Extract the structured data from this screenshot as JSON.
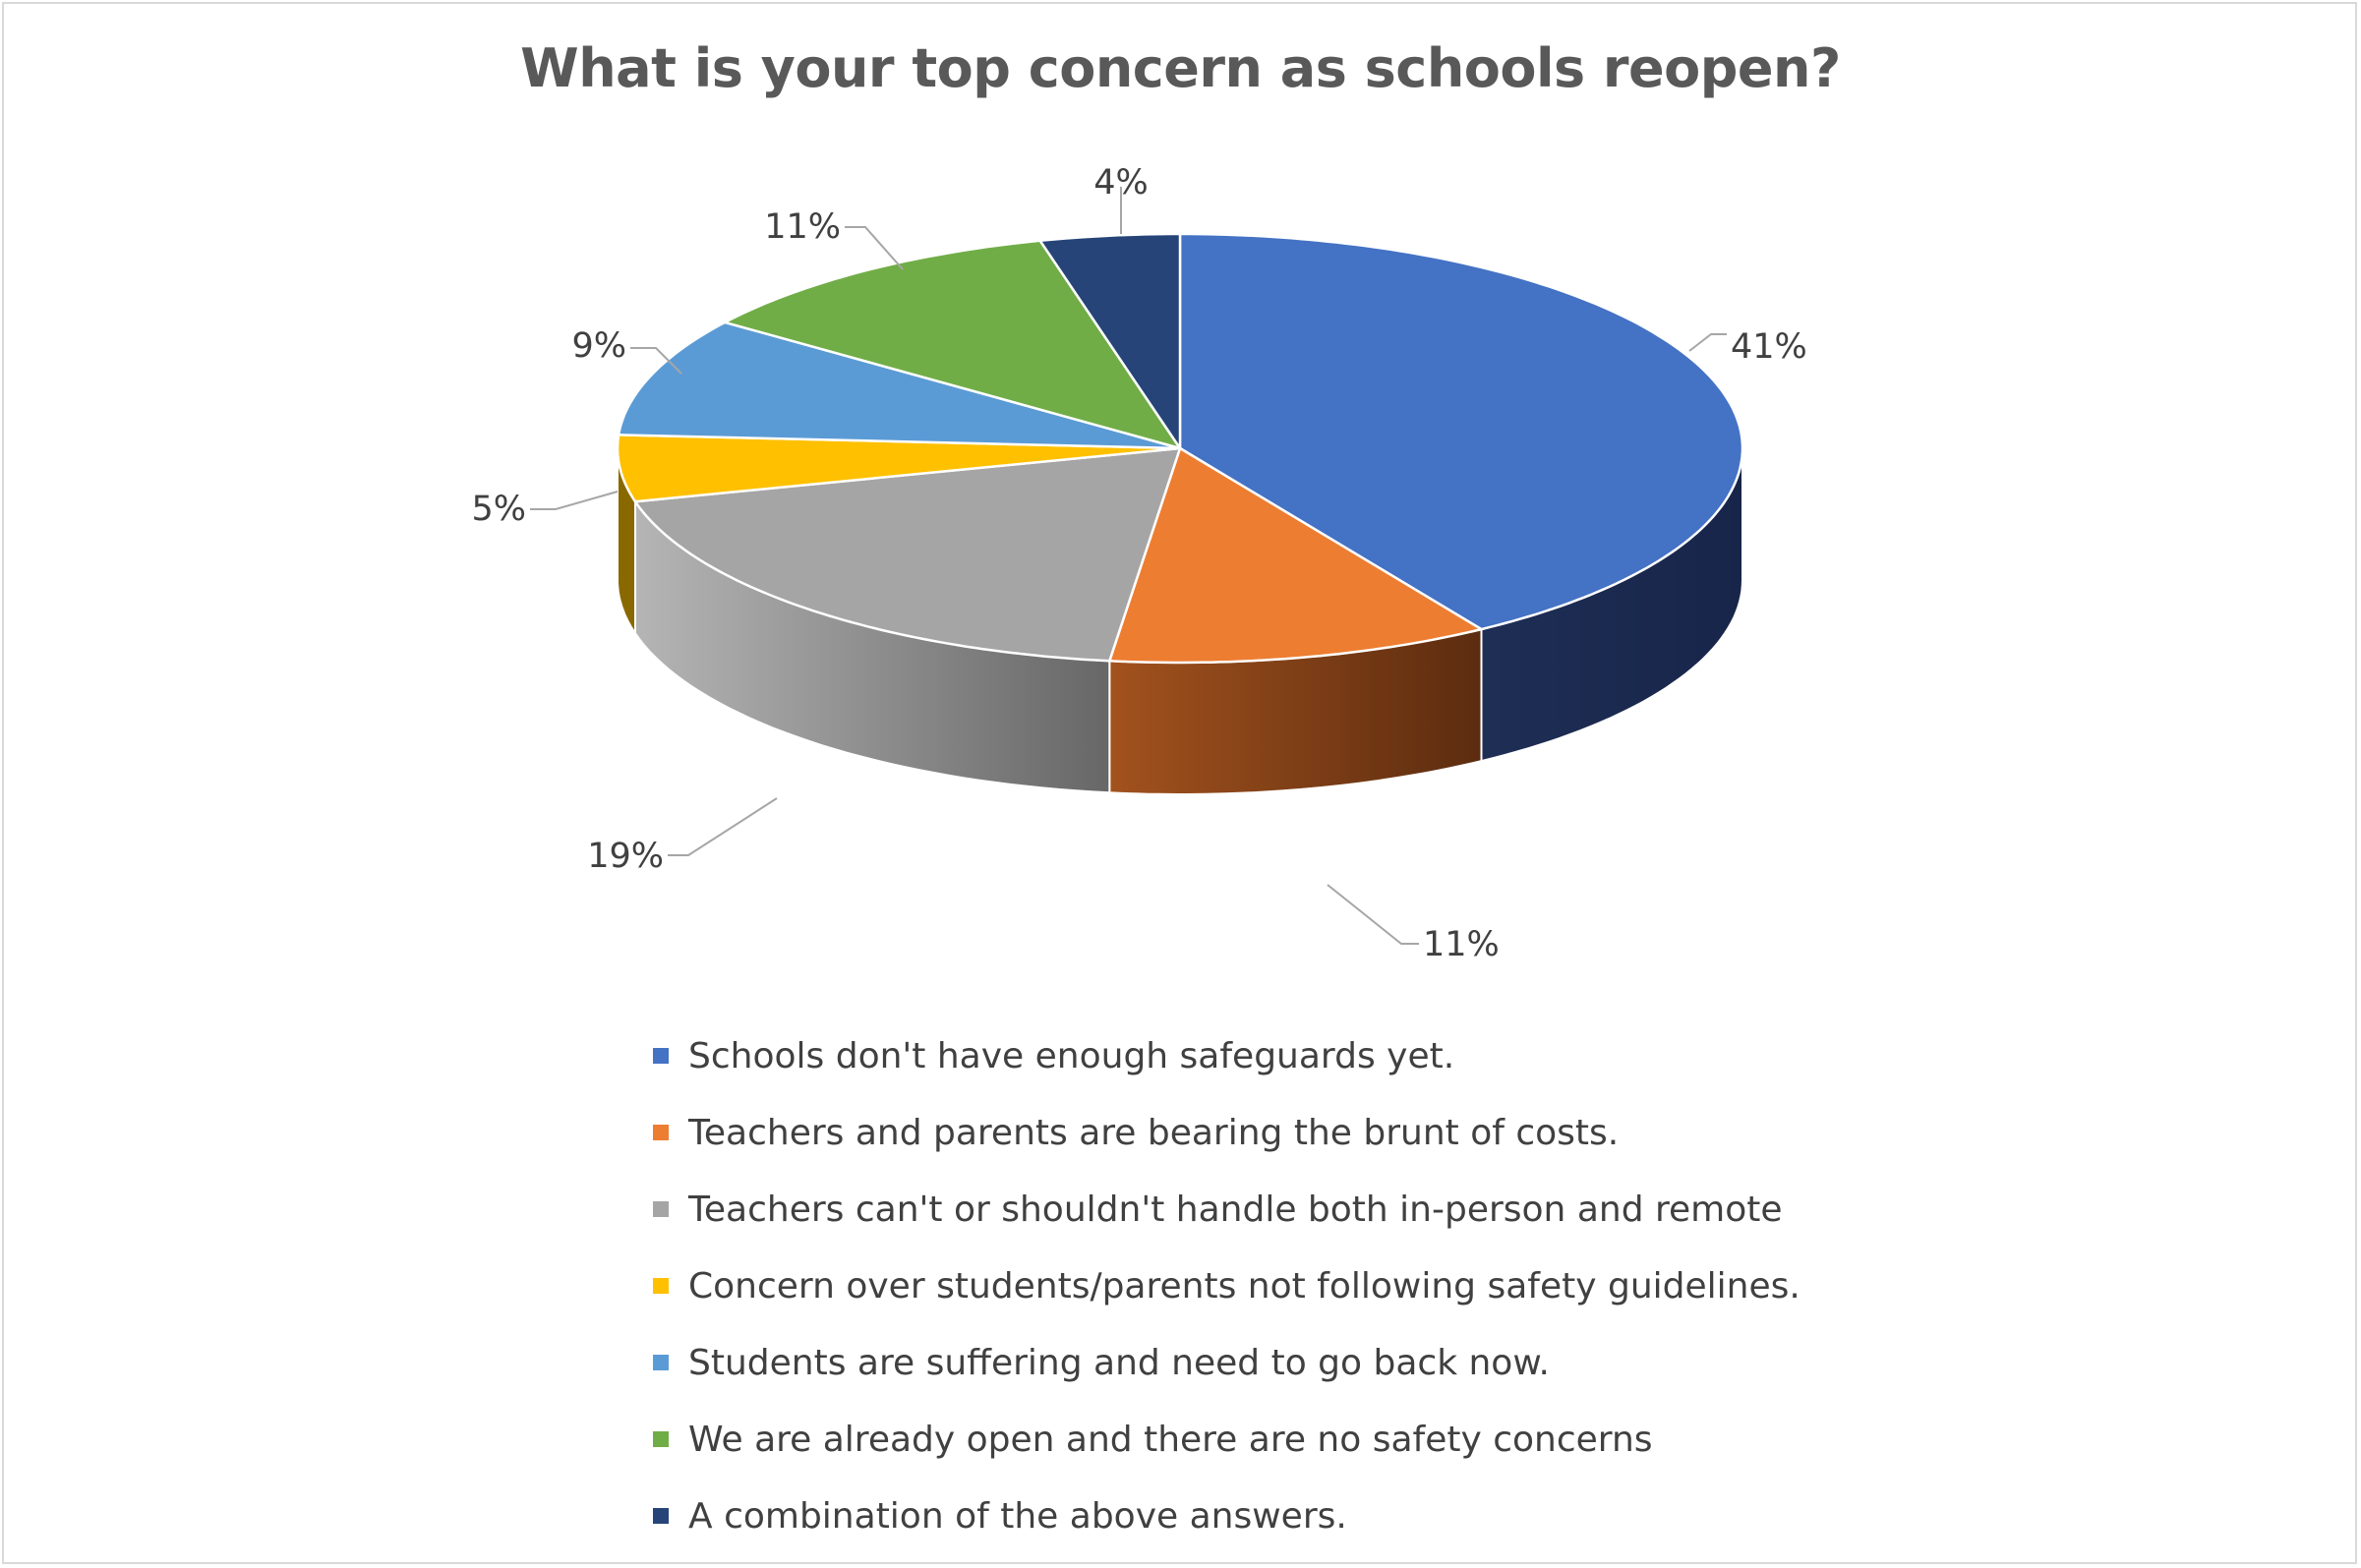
{
  "chart_data": {
    "type": "pie",
    "style": "3d-exploded-none",
    "title": "What is your top concern as schools reopen?",
    "slices": [
      {
        "label": "Schools don't have enough safeguards yet.",
        "value": 41,
        "display": "41%",
        "color": "#4472C4",
        "side_color": "#1C2B4E"
      },
      {
        "label": "Teachers and parents are bearing the brunt of costs.",
        "value": 11,
        "display": "11%",
        "color": "#ED7D31",
        "side_color": "#6B3412"
      },
      {
        "label": "Teachers can't or shouldn't handle both in-person and remote",
        "value": 19,
        "display": "19%",
        "color": "#A5A5A5",
        "side_color": "#6E6E6E"
      },
      {
        "label": "Concern over students/parents not following safety guidelines.",
        "value": 5,
        "display": "5%",
        "color": "#FFC000",
        "side_color": "#8A6800"
      },
      {
        "label": "Students are suffering and need to go back now.",
        "value": 9,
        "display": "9%",
        "color": "#5B9BD5",
        "side_color": "#2E5A83"
      },
      {
        "label": "We are already open and there are no safety concerns",
        "value": 11,
        "display": "11%",
        "color": "#70AD47",
        "side_color": "#3D6626"
      },
      {
        "label": "A combination of the above answers.",
        "value": 4,
        "display": "4%",
        "color": "#264478",
        "side_color": "#131F38"
      }
    ],
    "legend_position": "bottom"
  }
}
